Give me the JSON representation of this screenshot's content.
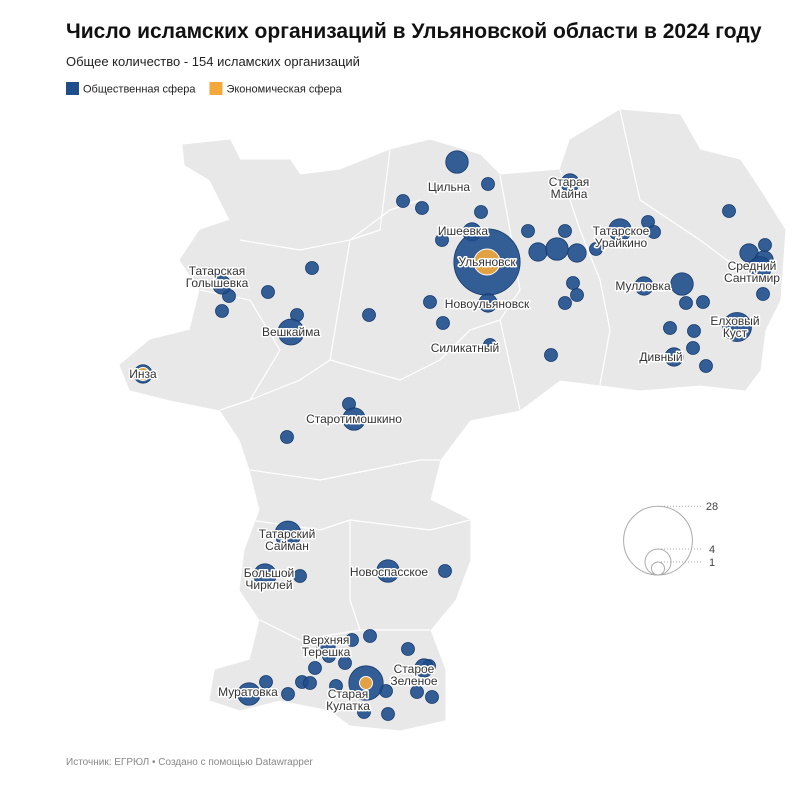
{
  "title": "Число исламских организаций в Ульяновской области в 2024 году",
  "subtitle": "Общее количество - 154 исламских организаций",
  "legend": [
    {
      "name": "Общественная сфера",
      "color": "#1f4e8c"
    },
    {
      "name": "Экономическая сфера",
      "color": "#f5a83a"
    }
  ],
  "size_legend": [
    28,
    4,
    1
  ],
  "places": [
    {
      "label": "Цильна",
      "count": 3
    },
    {
      "label": "Старая Майна",
      "count": 2
    },
    {
      "label": "Ишеевка",
      "count": 2
    },
    {
      "label": "Ульяновск",
      "count": 26,
      "economic": 4
    },
    {
      "label": "Татарское Урайкино",
      "count": 3
    },
    {
      "label": "Татарская Голышевка",
      "count": 2
    },
    {
      "label": "Новоульяновск",
      "count": 2
    },
    {
      "label": "Мулловка",
      "count": 2
    },
    {
      "label": "Средний Сантимир",
      "count": 3
    },
    {
      "label": "Вешкайма",
      "count": 4
    },
    {
      "label": "Елховый Куст",
      "count": 5
    },
    {
      "label": "Силикатный",
      "count": 1
    },
    {
      "label": "Дивный",
      "count": 2
    },
    {
      "label": "Инза",
      "count": 2,
      "economic": 1
    },
    {
      "label": "Старотимошкино",
      "count": 3
    },
    {
      "label": "Татарский Сайман",
      "count": 4
    },
    {
      "label": "Большой Чирклей",
      "count": 3
    },
    {
      "label": "Новоспасское",
      "count": 3
    },
    {
      "label": "Верхняя Терешка",
      "count": 2
    },
    {
      "label": "Старое Зеленое",
      "count": 2
    },
    {
      "label": "Муратовка",
      "count": 3
    },
    {
      "label": "Старая Кулатка",
      "count": 7,
      "economic": 1
    }
  ],
  "unlabeled_counts": [
    1,
    1,
    1,
    1,
    1,
    1,
    2,
    3,
    1,
    2,
    1,
    1,
    1,
    1,
    2,
    1,
    2,
    1,
    1,
    1,
    1,
    1,
    1,
    1,
    1,
    1,
    1,
    1,
    1,
    1,
    3,
    1,
    1,
    1,
    1,
    1,
    1,
    1,
    1,
    1,
    1,
    1,
    1,
    1,
    1,
    1,
    1,
    1,
    1,
    1,
    1,
    1,
    1,
    1,
    1,
    1,
    1,
    1
  ],
  "source": "Источник: ЕГРЮЛ • Создано с помощью Datawrapper"
}
